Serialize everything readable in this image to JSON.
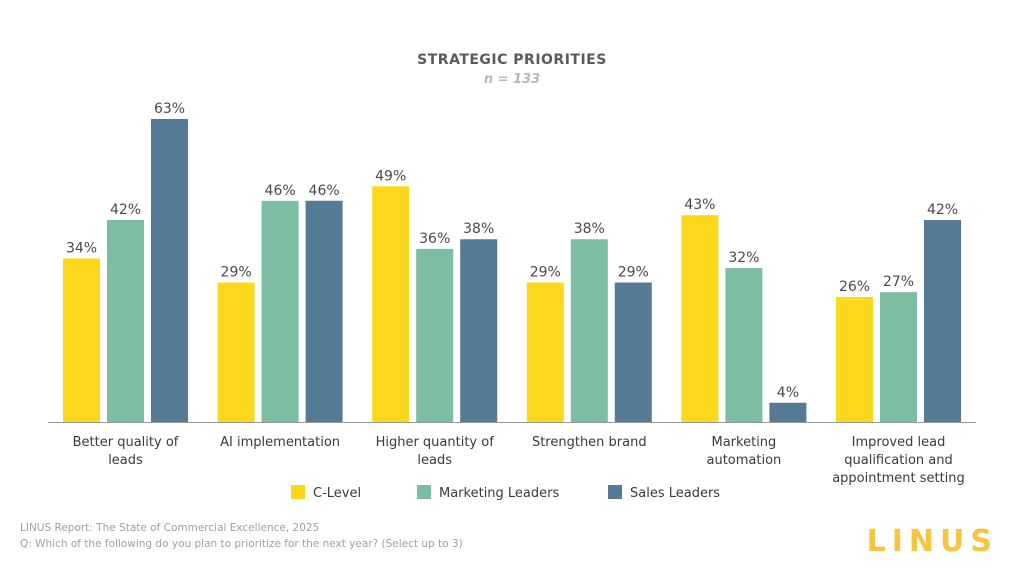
{
  "colors": {
    "c_level": "#FCD81C",
    "marketing": "#7DBDA3",
    "sales": "#557A96",
    "logo": "#F5C442",
    "axis": "#9a9a9a"
  },
  "chart_data": {
    "type": "bar",
    "title": "STRATEGIC PRIORITIES",
    "subtitle": "n = 133",
    "categories": [
      [
        "Better quality of",
        "leads"
      ],
      [
        "AI implementation"
      ],
      [
        "Higher quantity of",
        "leads"
      ],
      [
        "Strengthen brand"
      ],
      [
        "Marketing",
        "automation"
      ],
      [
        "Improved lead",
        "qualification and",
        "appointment setting"
      ]
    ],
    "series": [
      {
        "name": "C-Level",
        "values": [
          34,
          29,
          49,
          29,
          43,
          26
        ],
        "labels": [
          "34%",
          "29%",
          "49%",
          "29%",
          "43%",
          "26%"
        ]
      },
      {
        "name": "Marketing Leaders",
        "values": [
          42,
          46,
          36,
          38,
          32,
          27
        ],
        "labels": [
          "42%",
          "46%",
          "36%",
          "38%",
          "32%",
          "27%"
        ]
      },
      {
        "name": "Sales Leaders",
        "values": [
          63,
          46,
          38,
          29,
          4,
          42
        ],
        "labels": [
          "63%",
          "46%",
          "38%",
          "29%",
          "4%",
          "42%"
        ]
      }
    ],
    "ylim": [
      0,
      63
    ],
    "grid": false,
    "legend": "bottom"
  },
  "footer": {
    "source": "LINUS Report: The State of Commercial Excellence, 2025",
    "question": "Q: Which of the following do you plan to prioritize for the next year? (Select up to 3)"
  },
  "logo": "LINUS"
}
